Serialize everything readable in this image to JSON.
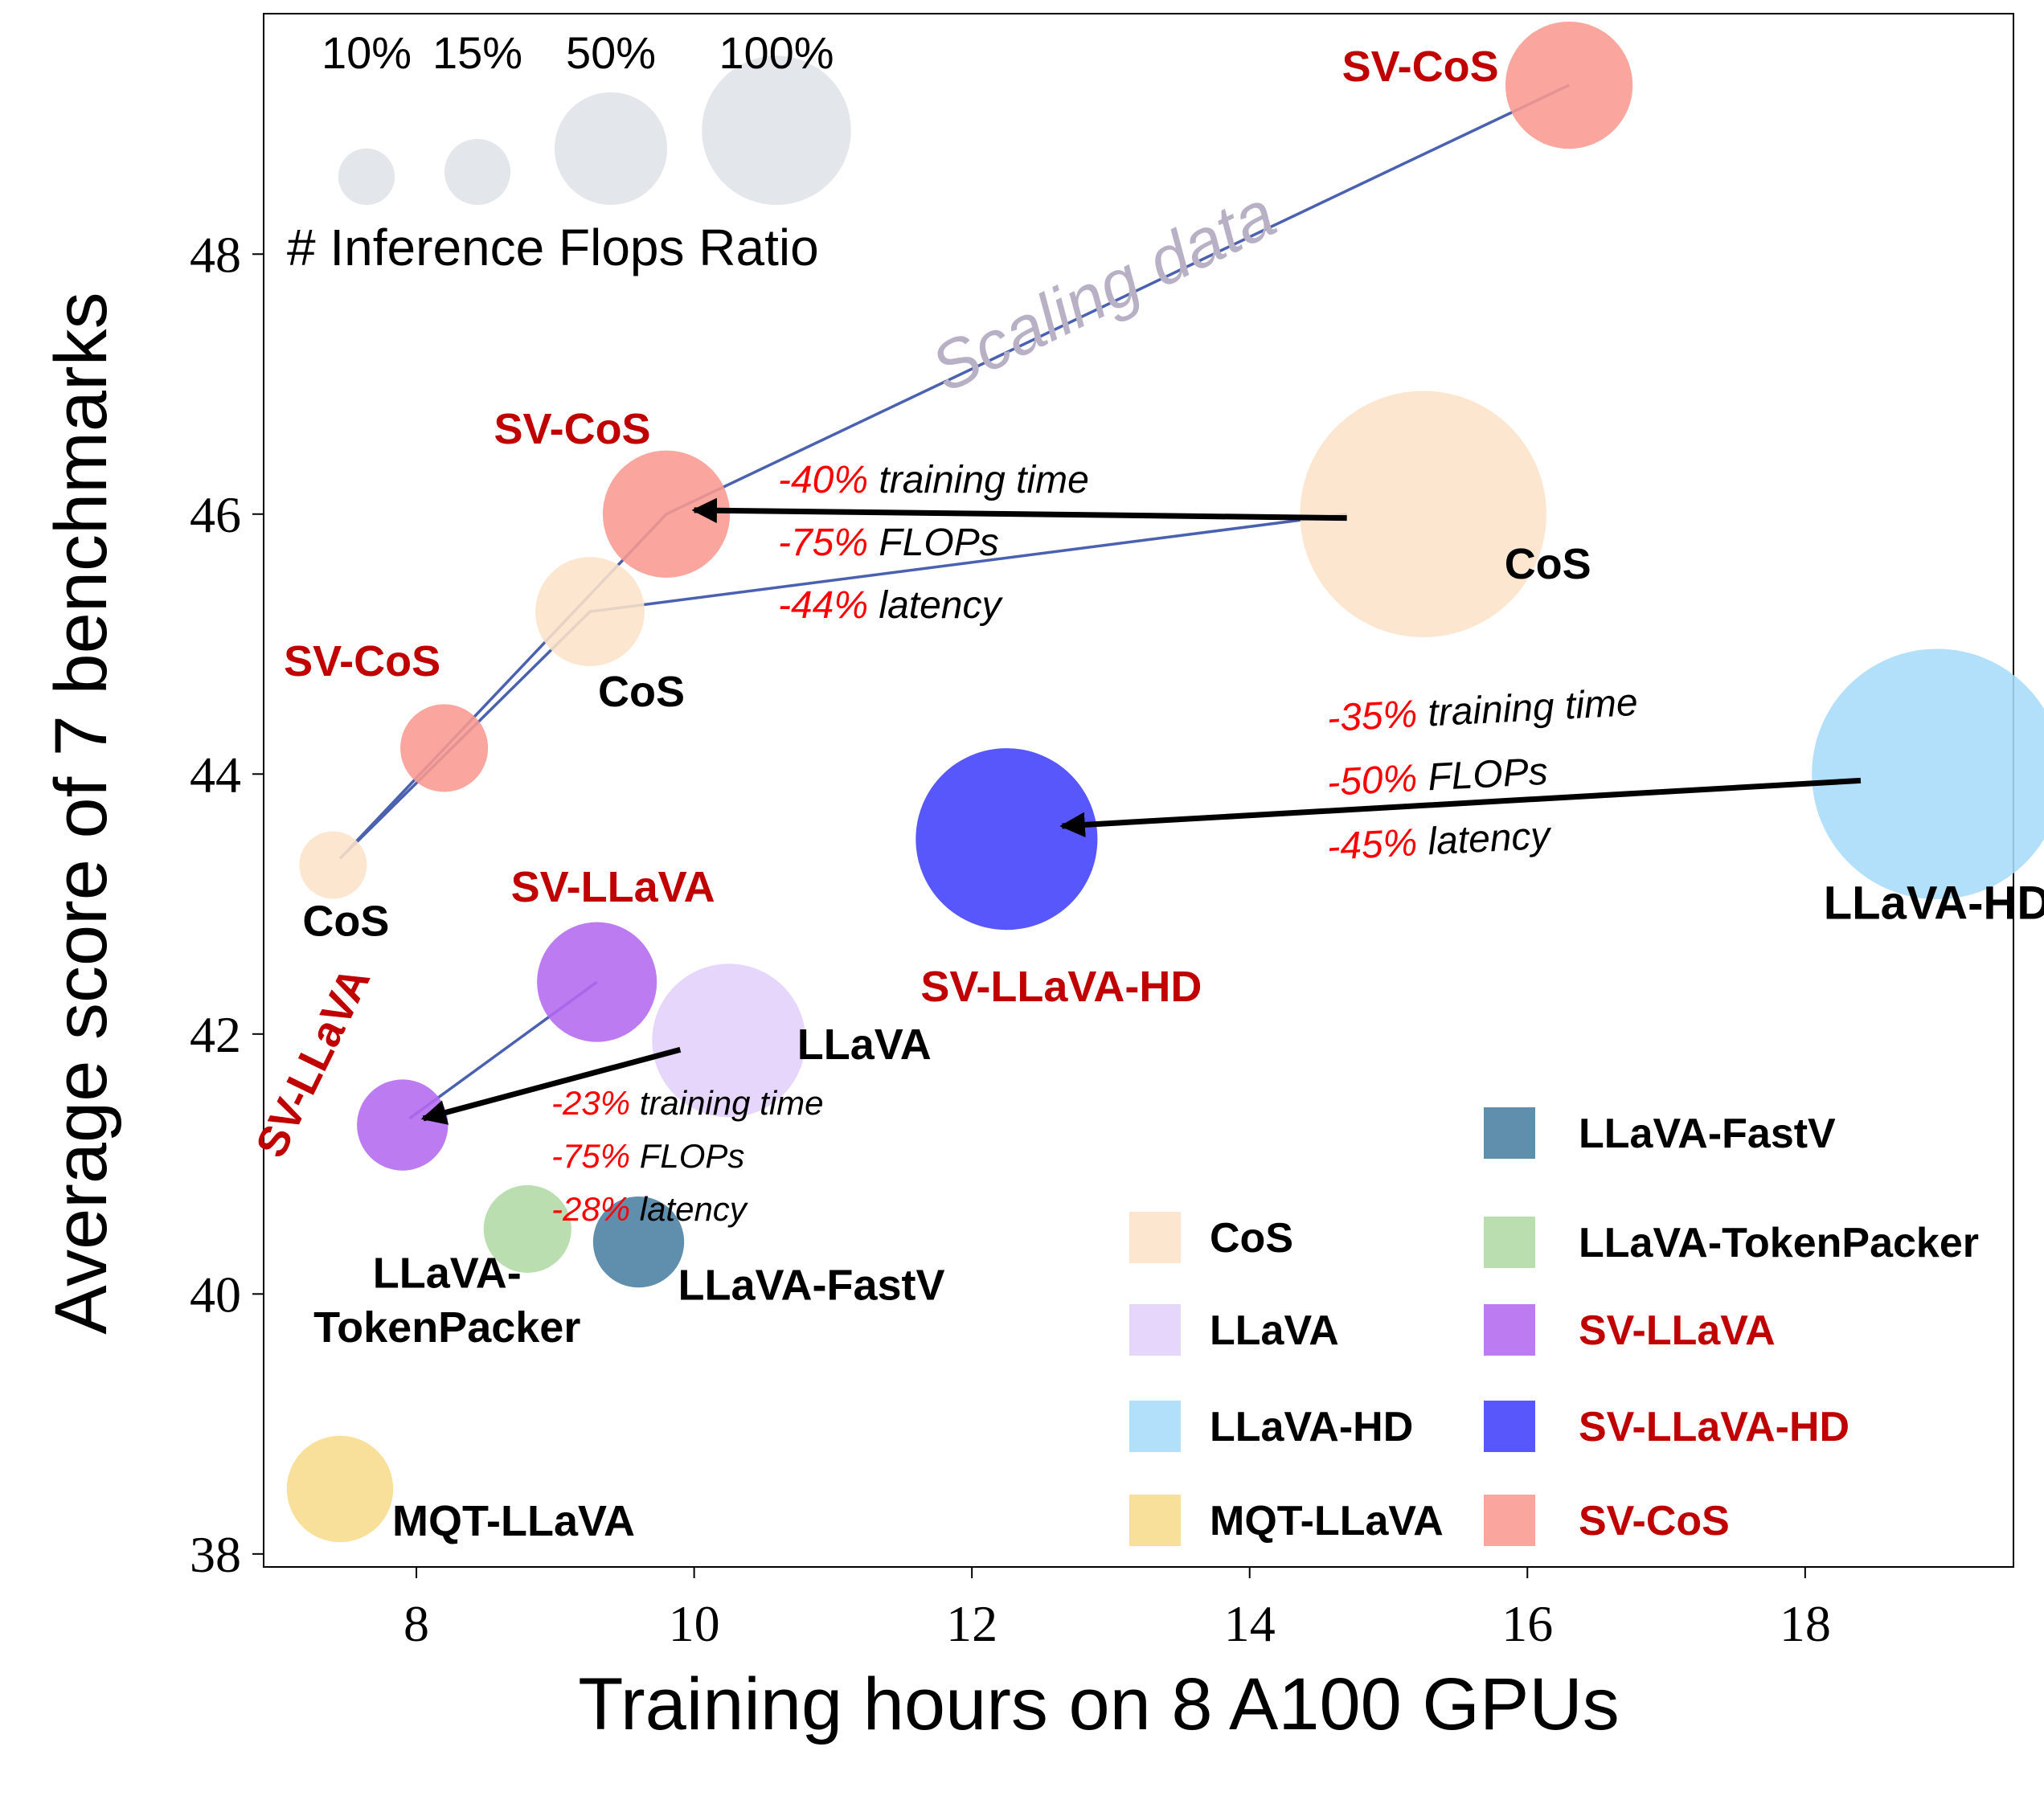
{
  "chart_data": {
    "type": "scatter",
    "xlabel": "Training hours on 8 A100 GPUs",
    "ylabel": "Average score of 7 benchmarks",
    "xlim": [
      6.9,
      19.5
    ],
    "ylim": [
      37.9,
      49.85
    ],
    "xticks": [
      8,
      10,
      12,
      14,
      16,
      18
    ],
    "yticks": [
      38,
      40,
      42,
      44,
      46,
      48
    ],
    "grid": false,
    "bubble_legend": {
      "title": "# Inference Flops Ratio",
      "entries": [
        {
          "label": "10%",
          "ratio": 0.1
        },
        {
          "label": "15%",
          "ratio": 0.15
        },
        {
          "label": "50%",
          "ratio": 0.5
        },
        {
          "label": "100%",
          "ratio": 1.0
        }
      ]
    },
    "colors": {
      "CoS": "#fde3c8",
      "LLaVA": "#e2d0fa",
      "LLaVA-HD": "#a7dcfa",
      "MQT-LLaVA": "#f7dc8c",
      "LLaVA-FastV": "#4a7fa3",
      "LLaVA-TokenPacker": "#b0d9a4",
      "SV-LLaVA": "#b469f0",
      "SV-LLaVA-HD": "#4040fa",
      "SV-CoS": "#f99890",
      "line": "#4a60b0",
      "annotation_red": "#ff0000",
      "label_red": "#c00000",
      "scaling_text": "#b8b1c5",
      "bubble_legend": "#e3e6ea"
    },
    "points": [
      {
        "group": "CoS",
        "label": "CoS",
        "x": 7.4,
        "y": 43.3,
        "ratio": 0.04,
        "label_color": "black"
      },
      {
        "group": "CoS",
        "label": "CoS",
        "x": 9.25,
        "y": 45.25,
        "ratio": 0.16,
        "label_color": "black"
      },
      {
        "group": "CoS",
        "label": "CoS",
        "x": 15.25,
        "y": 46.0,
        "ratio": 0.92,
        "label_color": "black"
      },
      {
        "group": "LLaVA",
        "label": "LLaVA",
        "x": 10.25,
        "y": 41.95,
        "ratio": 0.35,
        "label_color": "black"
      },
      {
        "group": "LLaVA-HD",
        "label": "LLaVA-HD",
        "x": 18.95,
        "y": 44.0,
        "ratio": 0.95,
        "label_color": "black"
      },
      {
        "group": "MQT-LLaVA",
        "label": "MQT-LLaVA",
        "x": 7.45,
        "y": 38.5,
        "ratio": 0.15,
        "label_color": "black"
      },
      {
        "group": "LLaVA-FastV",
        "label": "LLaVA-FastV",
        "x": 9.6,
        "y": 40.4,
        "ratio": 0.1,
        "label_color": "black"
      },
      {
        "group": "LLaVA-TokenPacker",
        "label": "LLaVA-\nTokenPacker",
        "x": 8.8,
        "y": 40.5,
        "ratio": 0.09,
        "label_color": "black"
      },
      {
        "group": "SV-LLaVA",
        "label": "SV-LLaVA",
        "x": 9.3,
        "y": 42.4,
        "ratio": 0.2,
        "label_color": "red"
      },
      {
        "group": "SV-LLaVA",
        "label": "SV-LLaVA",
        "x": 7.9,
        "y": 41.3,
        "ratio": 0.1,
        "label_color": "red"
      },
      {
        "group": "SV-LLaVA-HD",
        "label": "SV-LLaVA-HD",
        "x": 12.25,
        "y": 43.5,
        "ratio": 0.5,
        "label_color": "red"
      },
      {
        "group": "SV-CoS",
        "label": "SV-CoS",
        "x": 8.2,
        "y": 44.2,
        "ratio": 0.09,
        "label_color": "red"
      },
      {
        "group": "SV-CoS",
        "label": "SV-CoS",
        "x": 9.8,
        "y": 46.0,
        "ratio": 0.23,
        "label_color": "red"
      },
      {
        "group": "SV-CoS",
        "label": "SV-CoS",
        "x": 16.3,
        "y": 49.3,
        "ratio": 0.23,
        "label_color": "red"
      }
    ],
    "lines": [
      {
        "name": "sv-cos-scaling",
        "points": [
          [
            7.45,
            43.35
          ],
          [
            9.8,
            46.0
          ],
          [
            16.3,
            49.3
          ]
        ]
      },
      {
        "name": "cos-scaling",
        "points": [
          [
            7.45,
            43.35
          ],
          [
            9.25,
            45.25
          ],
          [
            14.7,
            46.0
          ]
        ]
      },
      {
        "name": "sv-llava-scaling",
        "points": [
          [
            7.95,
            41.35
          ],
          [
            9.3,
            42.4
          ]
        ]
      }
    ],
    "arrows": [
      {
        "from": [
          14.7,
          45.97
        ],
        "to": [
          10.0,
          46.03
        ]
      },
      {
        "from": [
          18.4,
          43.95
        ],
        "to": [
          12.65,
          43.6
        ]
      },
      {
        "from": [
          9.9,
          41.88
        ],
        "to": [
          8.05,
          41.35
        ]
      }
    ],
    "reductions": [
      {
        "lines": [
          {
            "value": "-40%",
            "text": "training time"
          },
          {
            "value": "-75%",
            "text": "FLOPs"
          },
          {
            "value": "-44%",
            "text": "latency"
          }
        ]
      },
      {
        "lines": [
          {
            "value": "-35%",
            "text": "training time"
          },
          {
            "value": "-50%",
            "text": "FLOPs"
          },
          {
            "value": "-45%",
            "text": "latency"
          }
        ]
      },
      {
        "lines": [
          {
            "value": "-23%",
            "text": "training time"
          },
          {
            "value": "-75%",
            "text": "FLOPs"
          },
          {
            "value": "-28%",
            "text": "latency"
          }
        ]
      }
    ],
    "scaling_annotation": "Scaling data",
    "legend": {
      "placement": "bottom-right",
      "columns": [
        [
          {
            "label": "CoS",
            "group": "CoS",
            "label_color": "black"
          },
          {
            "label": "LLaVA",
            "group": "LLaVA",
            "label_color": "black"
          },
          {
            "label": "LLaVA-HD",
            "group": "LLaVA-HD",
            "label_color": "black"
          },
          {
            "label": "MQT-LLaVA",
            "group": "MQT-LLaVA",
            "label_color": "black"
          }
        ],
        [
          {
            "label": "LLaVA-FastV",
            "group": "LLaVA-FastV",
            "label_color": "black"
          },
          {
            "label": "LLaVA-TokenPacker",
            "group": "LLaVA-TokenPacker",
            "label_color": "black"
          },
          {
            "label": "SV-LLaVA",
            "group": "SV-LLaVA",
            "label_color": "red"
          },
          {
            "label": "SV-LLaVA-HD",
            "group": "SV-LLaVA-HD",
            "label_color": "red"
          },
          {
            "label": "SV-CoS",
            "group": "SV-CoS",
            "label_color": "red"
          }
        ]
      ]
    }
  }
}
